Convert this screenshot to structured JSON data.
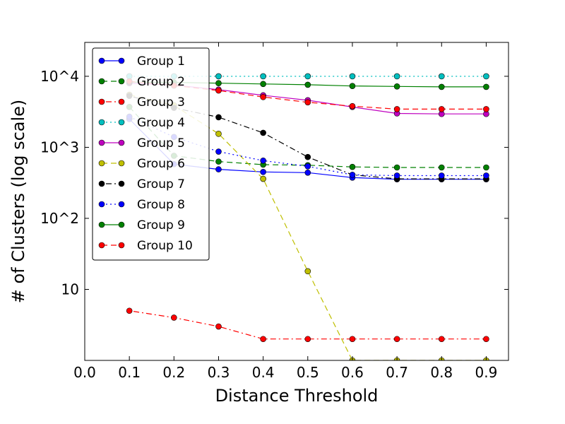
{
  "chart_data": {
    "type": "line",
    "title": "",
    "xlabel": "Distance Threshold",
    "ylabel": "# of Clusters (log scale)",
    "y_scale": "log",
    "xlim": [
      0.0,
      0.95
    ],
    "ylim": [
      1,
      30000
    ],
    "x_ticks": [
      "0.0",
      "0.1",
      "0.2",
      "0.3",
      "0.4",
      "0.5",
      "0.6",
      "0.7",
      "0.8",
      "0.9"
    ],
    "y_ticks": [
      {
        "value": 10,
        "label": "10"
      },
      {
        "value": 100,
        "label": "10^2"
      },
      {
        "value": 1000,
        "label": "10^3"
      },
      {
        "value": 10000,
        "label": "10^4"
      }
    ],
    "grid": false,
    "legend_position": "upper-left",
    "x": [
      0.1,
      0.2,
      0.3,
      0.4,
      0.5,
      0.6,
      0.7,
      0.8,
      0.9
    ],
    "series": [
      {
        "name": "Group 1",
        "color": "#0000ff",
        "dash": "",
        "values": [
          2500,
          580,
          490,
          450,
          440,
          375,
          355,
          355,
          355
        ]
      },
      {
        "name": "Group 2",
        "color": "#008000",
        "dash": "8,5",
        "values": [
          3700,
          760,
          630,
          570,
          560,
          530,
          520,
          520,
          520
        ]
      },
      {
        "name": "Group 3",
        "color": "#ff0000",
        "dash": "2,4,8,4",
        "values": [
          5,
          4,
          3,
          2,
          2,
          2,
          2,
          2,
          2
        ]
      },
      {
        "name": "Group 4",
        "color": "#00bfbf",
        "dash": "2,4",
        "values": [
          10000,
          10000,
          10000,
          10000,
          10000,
          10000,
          10000,
          10000,
          10000
        ]
      },
      {
        "name": "Group 5",
        "color": "#bf00bf",
        "dash": "",
        "values": [
          8000,
          7500,
          6500,
          5400,
          4600,
          3700,
          3000,
          2950,
          2950
        ]
      },
      {
        "name": "Group 6",
        "color": "#bfbf00",
        "dash": "8,5",
        "values": [
          5500,
          3900,
          1550,
          360,
          18,
          1,
          1,
          1,
          1
        ]
      },
      {
        "name": "Group 7",
        "color": "#000000",
        "dash": "2,4,8,4",
        "values": [
          5300,
          3600,
          2650,
          1600,
          730,
          410,
          360,
          360,
          360
        ]
      },
      {
        "name": "Group 8",
        "color": "#0000ff",
        "dash": "2,4",
        "values": [
          2700,
          1400,
          870,
          650,
          540,
          410,
          400,
          400,
          400
        ]
      },
      {
        "name": "Group 9",
        "color": "#008000",
        "dash": "",
        "values": [
          8300,
          8200,
          8000,
          7800,
          7600,
          7300,
          7200,
          7100,
          7100
        ]
      },
      {
        "name": "Group 10",
        "color": "#ff0000",
        "dash": "8,5",
        "values": [
          8500,
          7400,
          6300,
          5100,
          4300,
          3800,
          3450,
          3450,
          3450
        ]
      }
    ]
  }
}
